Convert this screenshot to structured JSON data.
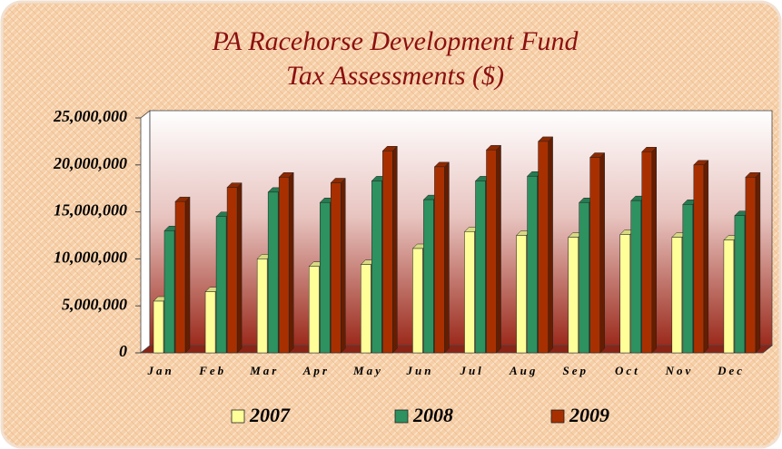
{
  "chart_data": {
    "type": "bar",
    "title": "PA Racehorse Development Fund",
    "subtitle": "Tax Assessments ($)",
    "categories": [
      "Jan",
      "Feb",
      "Mar",
      "Apr",
      "May",
      "Jun",
      "Jul",
      "Aug",
      "Sep",
      "Oct",
      "Nov",
      "Dec"
    ],
    "series": [
      {
        "name": "2007",
        "color": "#ffff99",
        "values": [
          5500000,
          6500000,
          10000000,
          9200000,
          9400000,
          11100000,
          12900000,
          12500000,
          12300000,
          12600000,
          12300000,
          12000000
        ]
      },
      {
        "name": "2008",
        "color": "#2e9160",
        "values": [
          13000000,
          14500000,
          17100000,
          16000000,
          18300000,
          16300000,
          18300000,
          18800000,
          16000000,
          16200000,
          15800000,
          14600000
        ]
      },
      {
        "name": "2009",
        "color": "#a83000",
        "values": [
          16100000,
          17600000,
          18700000,
          18100000,
          21500000,
          19800000,
          21600000,
          22500000,
          20800000,
          21400000,
          20000000,
          18700000
        ]
      }
    ],
    "ylim": [
      0,
      25000000
    ],
    "yticks": [
      {
        "value": 0,
        "label": "0"
      },
      {
        "value": 5000000,
        "label": "5,000,000"
      },
      {
        "value": 10000000,
        "label": "10,000,000"
      },
      {
        "value": 15000000,
        "label": "15,000,000"
      },
      {
        "value": 20000000,
        "label": "20,000,000"
      },
      {
        "value": 25000000,
        "label": "25,000,000"
      }
    ],
    "legend": "bottom"
  }
}
